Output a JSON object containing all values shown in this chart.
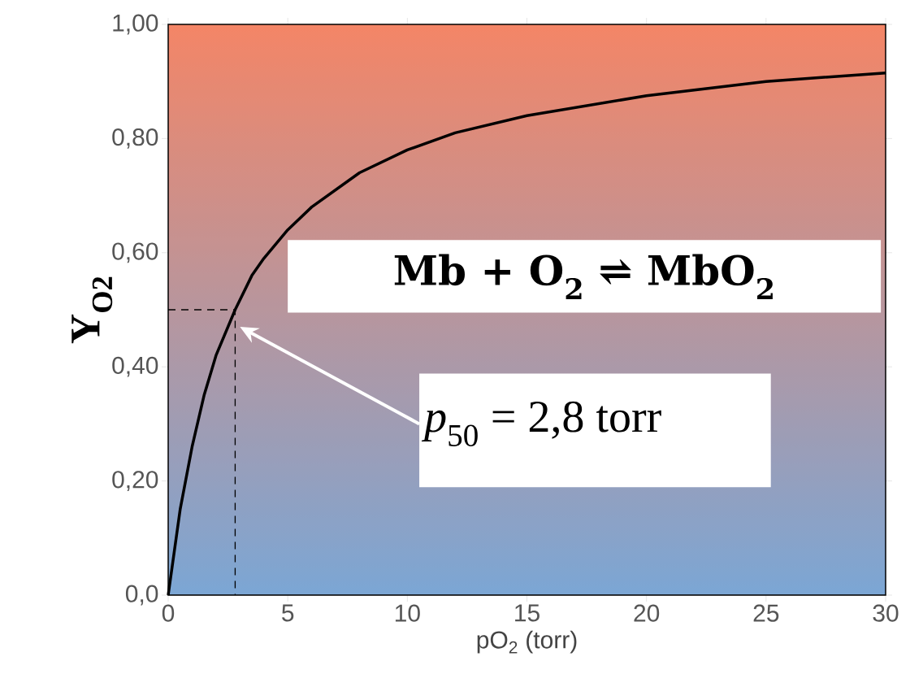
{
  "chart_data": {
    "type": "line",
    "xlabel": "pO$_{2}$ (torr)",
    "ylabel": "Y$_{O2}$",
    "xlim": [
      0,
      30
    ],
    "ylim": [
      0,
      1
    ],
    "xticks": [
      0,
      5,
      10,
      15,
      20,
      25,
      30
    ],
    "yticks": [
      {
        "value": 0,
        "label": "0,0"
      },
      {
        "value": 0.2,
        "label": "0,20"
      },
      {
        "value": 0.4,
        "label": "0,40"
      },
      {
        "value": 0.6,
        "label": "0,60"
      },
      {
        "value": 0.8,
        "label": "0,80"
      },
      {
        "value": 1,
        "label": "1,00"
      }
    ],
    "marker": "none",
    "series": [
      {
        "color": "#000000",
        "line_style": "solid",
        "x": [
          0,
          0.5,
          1,
          1.5,
          2,
          2.8,
          3.5,
          4,
          5,
          6,
          7,
          8,
          10,
          12,
          15,
          20,
          25,
          30
        ],
        "values": [
          0,
          0.15,
          0.26,
          0.35,
          0.42,
          0.5,
          0.56,
          0.59,
          0.64,
          0.68,
          0.71,
          0.74,
          0.78,
          0.81,
          0.84,
          0.875,
          0.9,
          0.915
        ]
      },
      {
        "color": "#000000",
        "line_style": "dashed",
        "x": [
          0,
          2.8,
          2.8
        ],
        "values": [
          0.5,
          0.5,
          0
        ]
      }
    ],
    "annotations": [
      "Mb + O$_{2}$ ⇌ MbO$_{2}$",
      "*p*$_{50}$ = 2,8 torr"
    ]
  }
}
